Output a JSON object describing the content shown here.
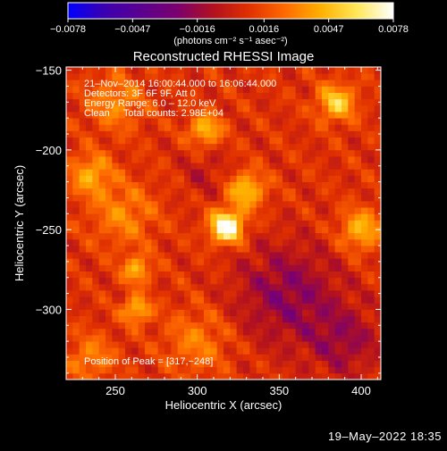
{
  "colorbar": {
    "ticks": [
      -0.0078,
      -0.0047,
      -0.0016,
      0.0016,
      0.0047,
      0.0078
    ],
    "tick_labels": [
      "−0.0078",
      "−0.0047",
      "−0.0016",
      "0.0016",
      "0.0047",
      "0.0078"
    ],
    "range": [
      -0.0078,
      0.0078
    ],
    "unit_label": "(photons cm⁻² s⁻¹ asec⁻²)",
    "colors": [
      "#0000ff",
      "#3b00b0",
      "#5a0090",
      "#7a0070",
      "#b01020",
      "#e03000",
      "#ff6a00",
      "#ffb000",
      "#ffe85a",
      "#ffffff"
    ]
  },
  "chart_data": {
    "type": "heatmap",
    "title": "Reconstructed RHESSI Image",
    "xlabel": "Heliocentric X (arcsec)",
    "ylabel": "Heliocentric Y (arcsec)",
    "xlim": [
      220,
      412
    ],
    "ylim": [
      -344,
      -148
    ],
    "xticks": [
      250,
      300,
      350,
      400
    ],
    "yticks": [
      -150,
      -200,
      -250,
      -300
    ],
    "xtick_labels": [
      "250",
      "300",
      "350",
      "400"
    ],
    "ytick_labels": [
      "−150",
      "−200",
      "−250",
      "−300"
    ],
    "peak": [
      317,
      -248
    ],
    "annotations": [
      "21–Nov–2014 16:00:44.000 to 16:06:44.000",
      "Detectors: 3F 6F 9F, Att 0",
      "Energy Range: 6.0 – 12.0 keV",
      "Clean     Total counts: 2.98E+04"
    ],
    "peak_label": "Position of Peak = [317,−248]",
    "sources": [
      {
        "x": 318,
        "y": -248,
        "amp": 0.0078,
        "sigma": 7
      },
      {
        "x": 330,
        "y": -225,
        "amp": 0.0042,
        "sigma": 8
      },
      {
        "x": 305,
        "y": -187,
        "amp": 0.004,
        "sigma": 7
      },
      {
        "x": 385,
        "y": -170,
        "amp": 0.0046,
        "sigma": 8
      },
      {
        "x": 235,
        "y": -215,
        "amp": 0.0034,
        "sigma": 9
      },
      {
        "x": 263,
        "y": -275,
        "amp": 0.0037,
        "sigma": 6
      },
      {
        "x": 263,
        "y": -300,
        "amp": 0.004,
        "sigma": 6
      },
      {
        "x": 400,
        "y": -250,
        "amp": 0.0038,
        "sigma": 9
      },
      {
        "x": 250,
        "y": -170,
        "amp": 0.0026,
        "sigma": 12
      },
      {
        "x": 235,
        "y": -330,
        "amp": 0.0024,
        "sigma": 10
      },
      {
        "x": 300,
        "y": -320,
        "amp": 0.0022,
        "sigma": 14
      },
      {
        "x": 255,
        "y": -240,
        "amp": 0.0024,
        "sigma": 14
      }
    ],
    "negative_regions": [
      {
        "x": 355,
        "y": -290,
        "amp": -0.0028,
        "sigma": 22
      },
      {
        "x": 390,
        "y": -320,
        "amp": -0.0022,
        "sigma": 16
      },
      {
        "x": 305,
        "y": -215,
        "amp": -0.0012,
        "sigma": 10
      }
    ]
  },
  "footer": {
    "date": "19–May–2022 18:35"
  }
}
